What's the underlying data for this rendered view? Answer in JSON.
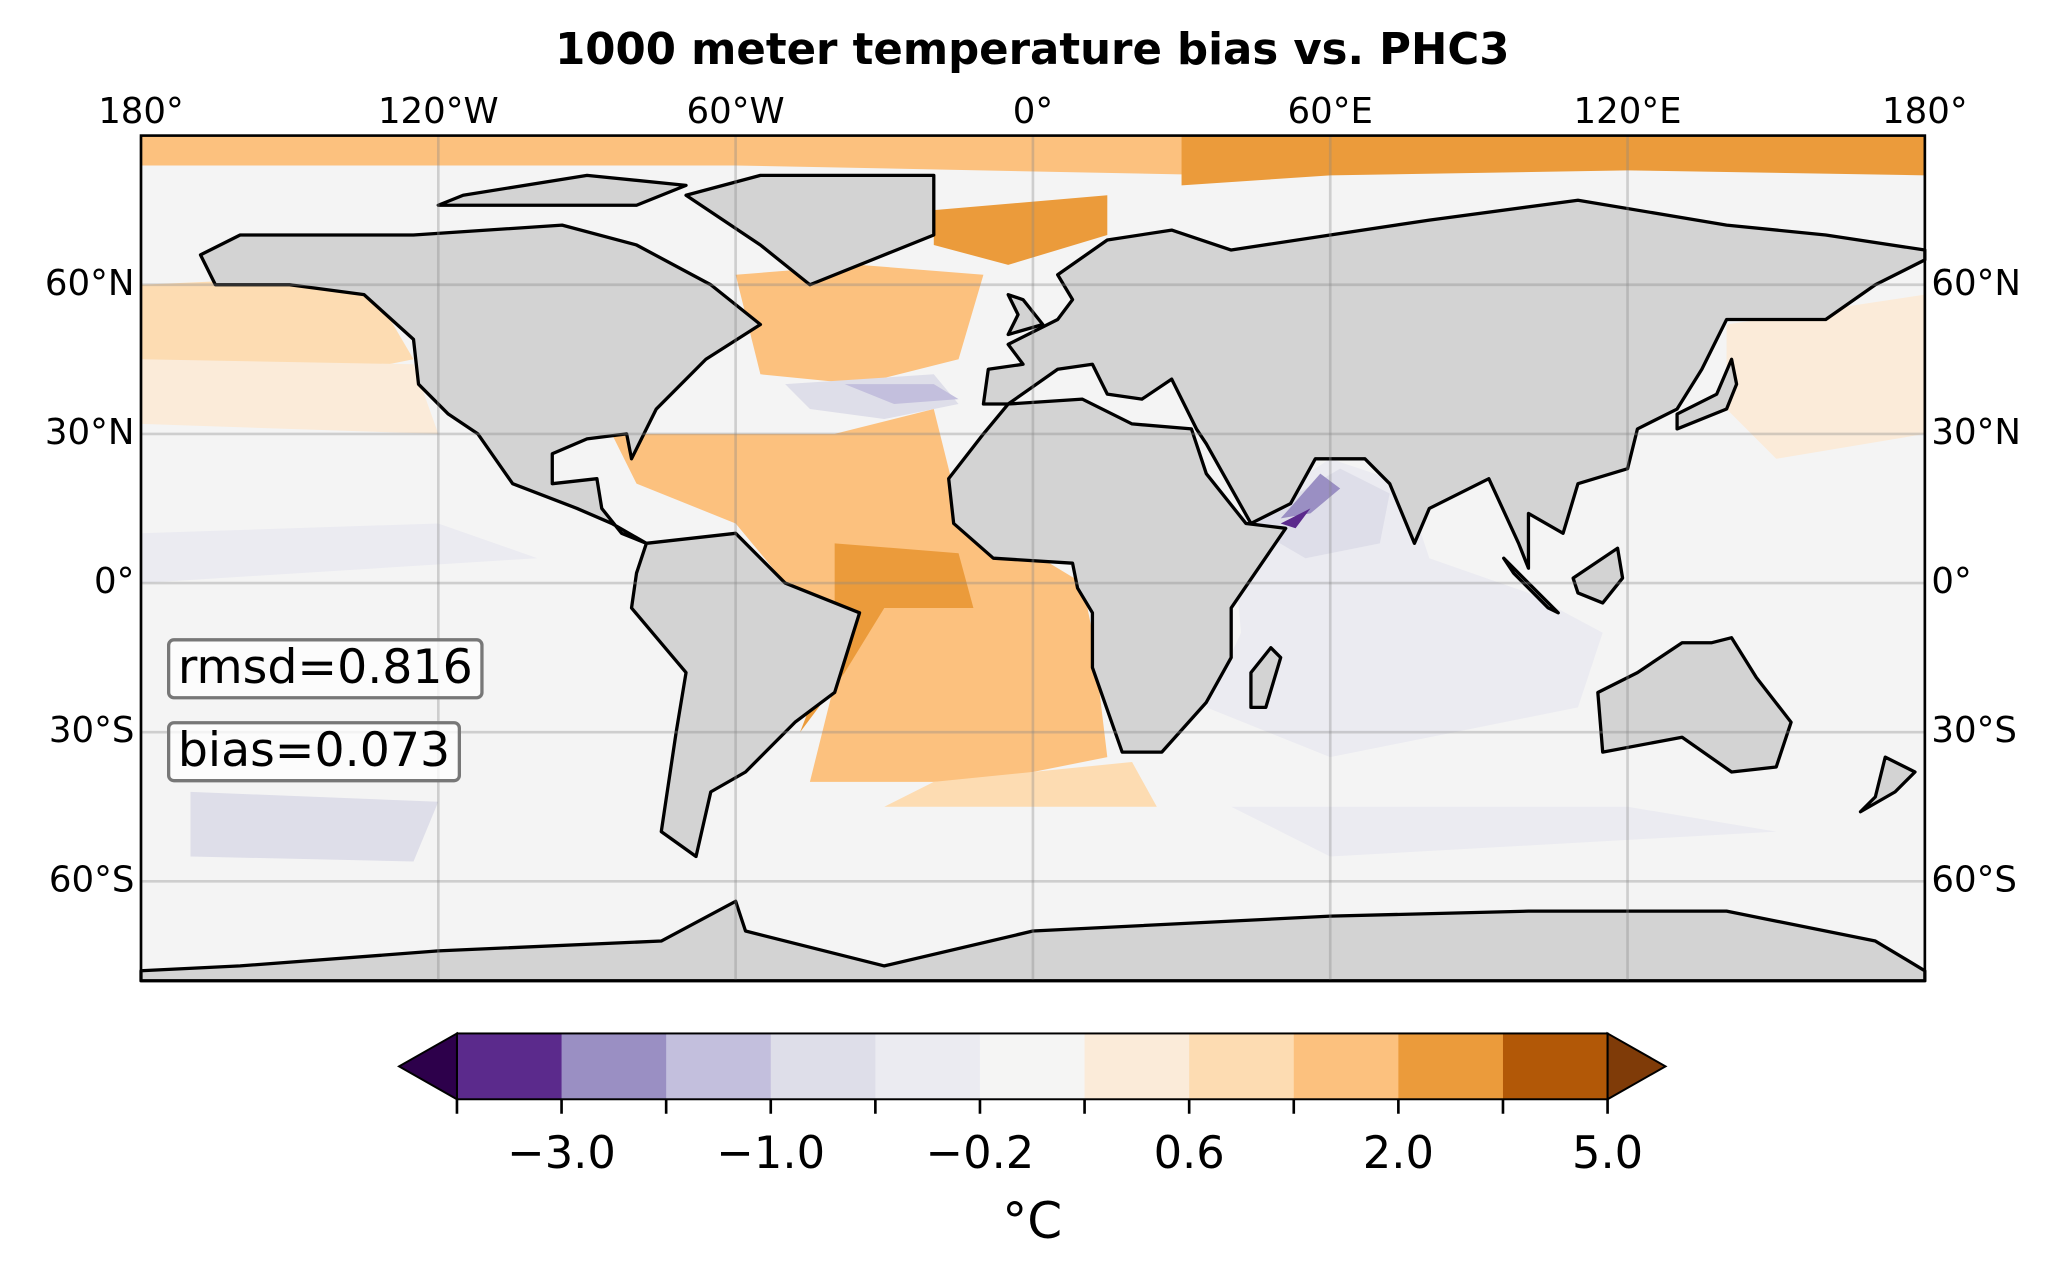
{
  "chart_data": {
    "type": "map",
    "title": "1000 meter temperature bias vs. PHC3",
    "xlim": [
      -180,
      180
    ],
    "ylim": [
      -80,
      90
    ],
    "xticks": [
      {
        "value": -180,
        "label": "180°"
      },
      {
        "value": -120,
        "label": "120°W"
      },
      {
        "value": -60,
        "label": "60°W"
      },
      {
        "value": 0,
        "label": "0°"
      },
      {
        "value": 60,
        "label": "60°E"
      },
      {
        "value": 120,
        "label": "120°E"
      },
      {
        "value": 180,
        "label": "180°"
      }
    ],
    "yticks": [
      {
        "value": 60,
        "label": "60°N"
      },
      {
        "value": 30,
        "label": "30°N"
      },
      {
        "value": 0,
        "label": "0°"
      },
      {
        "value": -30,
        "label": "30°S"
      },
      {
        "value": -60,
        "label": "60°S"
      }
    ],
    "grid": true,
    "land_color": "#d3d3d3",
    "ocean_color": "#f4f4f4",
    "annotations": [
      "rmsd=0.816",
      "bias=0.073"
    ],
    "colorbar": {
      "label": "°C",
      "levels": [
        -5,
        -3,
        -2,
        -1,
        -0.6,
        -0.2,
        0.2,
        0.6,
        1,
        2,
        3,
        5
      ],
      "ticks": [
        {
          "value": -3,
          "label": "−3.0"
        },
        {
          "value": -1,
          "label": "−1.0"
        },
        {
          "value": -0.2,
          "label": "−0.2"
        },
        {
          "value": 0.6,
          "label": "0.6"
        },
        {
          "value": 2,
          "label": "2.0"
        },
        {
          "value": 5,
          "label": "5.0"
        }
      ],
      "colors": [
        "#5b2a8c",
        "#9a8fc3",
        "#c3bfdd",
        "#dedee9",
        "#ebebf1",
        "#f5f5f4",
        "#fbebd9",
        "#fddcb2",
        "#fcc17e",
        "#eb9b3b",
        "#b25807"
      ],
      "extend_colors": [
        "#2d004b",
        "#7f3b08"
      ]
    }
  }
}
